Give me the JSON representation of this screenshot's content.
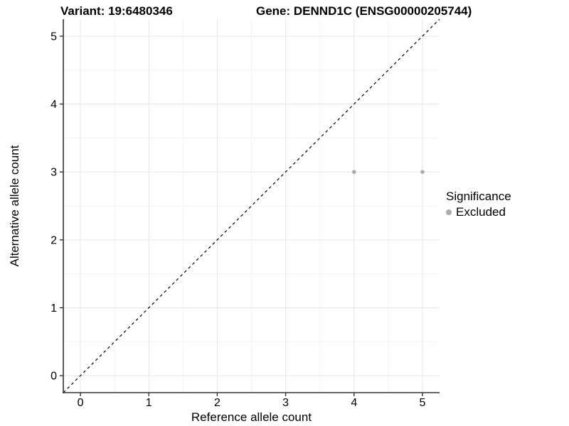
{
  "chart_data": {
    "type": "scatter",
    "titles": {
      "variant": "Variant: 19:6480346",
      "gene": "Gene: DENND1C (ENSG00000205744)"
    },
    "xlabel": "Reference allele count",
    "ylabel": "Alternative allele count",
    "xlim": [
      -0.25,
      5.25
    ],
    "ylim": [
      -0.25,
      5.25
    ],
    "x_ticks": [
      0,
      1,
      2,
      3,
      4,
      5
    ],
    "y_ticks": [
      0,
      1,
      2,
      3,
      4,
      5
    ],
    "x_minor_ticks": [
      0.5,
      1.5,
      2.5,
      3.5,
      4.5
    ],
    "y_minor_ticks": [
      0.5,
      1.5,
      2.5,
      3.5,
      4.5
    ],
    "grid": "major+minor",
    "points": [
      {
        "x": 4,
        "y": 3,
        "series": "Excluded"
      },
      {
        "x": 5,
        "y": 3,
        "series": "Excluded"
      }
    ],
    "identity_line": {
      "style": "dashed",
      "from": [
        -0.25,
        -0.25
      ],
      "to": [
        5.25,
        5.25
      ],
      "color": "#000000"
    },
    "legend": {
      "position": "right",
      "title": "Significance",
      "items": [
        {
          "label": "Excluded",
          "color": "#aaaaaa"
        }
      ]
    },
    "colors": {
      "background": "#ffffff",
      "grid_major": "#e6e6e6",
      "grid_minor": "#f3f3f3",
      "axis_line": "#333333",
      "tick_mark": "#333333",
      "tick_label": "#000000",
      "point": "#aaaaaa"
    }
  }
}
